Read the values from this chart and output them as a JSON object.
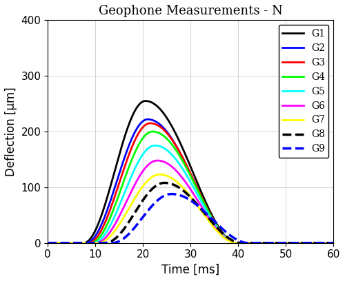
{
  "title": "Geophone Measurements - N",
  "xlabel": "Time [ms]",
  "ylabel": "Deflection [μm]",
  "xlim": [
    0,
    60
  ],
  "ylim": [
    0,
    400
  ],
  "xticks": [
    0,
    10,
    20,
    30,
    40,
    50,
    60
  ],
  "yticks": [
    0,
    100,
    200,
    300,
    400
  ],
  "series": [
    {
      "label": "G1",
      "color": "#000000",
      "linestyle": "-",
      "linewidth": 2.0,
      "peak": 255,
      "t_start": 7.5,
      "t_peak": 20.5,
      "t_end": 39.5,
      "rise_exp": 2.0,
      "fall_exp": 1.8
    },
    {
      "label": "G2",
      "color": "#0000FF",
      "linestyle": "-",
      "linewidth": 2.0,
      "peak": 222,
      "t_start": 8.0,
      "t_peak": 21.0,
      "t_end": 39.5,
      "rise_exp": 2.0,
      "fall_exp": 1.8
    },
    {
      "label": "G3",
      "color": "#FF0000",
      "linestyle": "-",
      "linewidth": 2.0,
      "peak": 215,
      "t_start": 8.5,
      "t_peak": 21.5,
      "t_end": 39.5,
      "rise_exp": 2.0,
      "fall_exp": 1.8
    },
    {
      "label": "G4",
      "color": "#00FF00",
      "linestyle": "-",
      "linewidth": 2.0,
      "peak": 200,
      "t_start": 9.0,
      "t_peak": 22.0,
      "t_end": 39.5,
      "rise_exp": 2.0,
      "fall_exp": 1.8
    },
    {
      "label": "G5",
      "color": "#00FFFF",
      "linestyle": "-",
      "linewidth": 2.0,
      "peak": 175,
      "t_start": 9.5,
      "t_peak": 22.5,
      "t_end": 39.5,
      "rise_exp": 2.0,
      "fall_exp": 1.8
    },
    {
      "label": "G6",
      "color": "#FF00FF",
      "linestyle": "-",
      "linewidth": 2.0,
      "peak": 148,
      "t_start": 10.0,
      "t_peak": 23.0,
      "t_end": 39.5,
      "rise_exp": 2.0,
      "fall_exp": 1.8
    },
    {
      "label": "G7",
      "color": "#FFFF00",
      "linestyle": "-",
      "linewidth": 2.0,
      "peak": 123,
      "t_start": 10.5,
      "t_peak": 23.5,
      "t_end": 39.5,
      "rise_exp": 2.0,
      "fall_exp": 1.8
    },
    {
      "label": "G8",
      "color": "#000000",
      "linestyle": "--",
      "linewidth": 2.5,
      "peak": 108,
      "t_start": 12.0,
      "t_peak": 24.5,
      "t_end": 40.5,
      "rise_exp": 2.0,
      "fall_exp": 1.8
    },
    {
      "label": "G9",
      "color": "#0000FF",
      "linestyle": "--",
      "linewidth": 2.5,
      "peak": 88,
      "t_start": 13.5,
      "t_peak": 26.0,
      "t_end": 42.0,
      "rise_exp": 2.0,
      "fall_exp": 1.8
    }
  ],
  "grid": true,
  "legend_loc": "upper right",
  "title_fontsize": 13,
  "label_fontsize": 12,
  "tick_fontsize": 11
}
